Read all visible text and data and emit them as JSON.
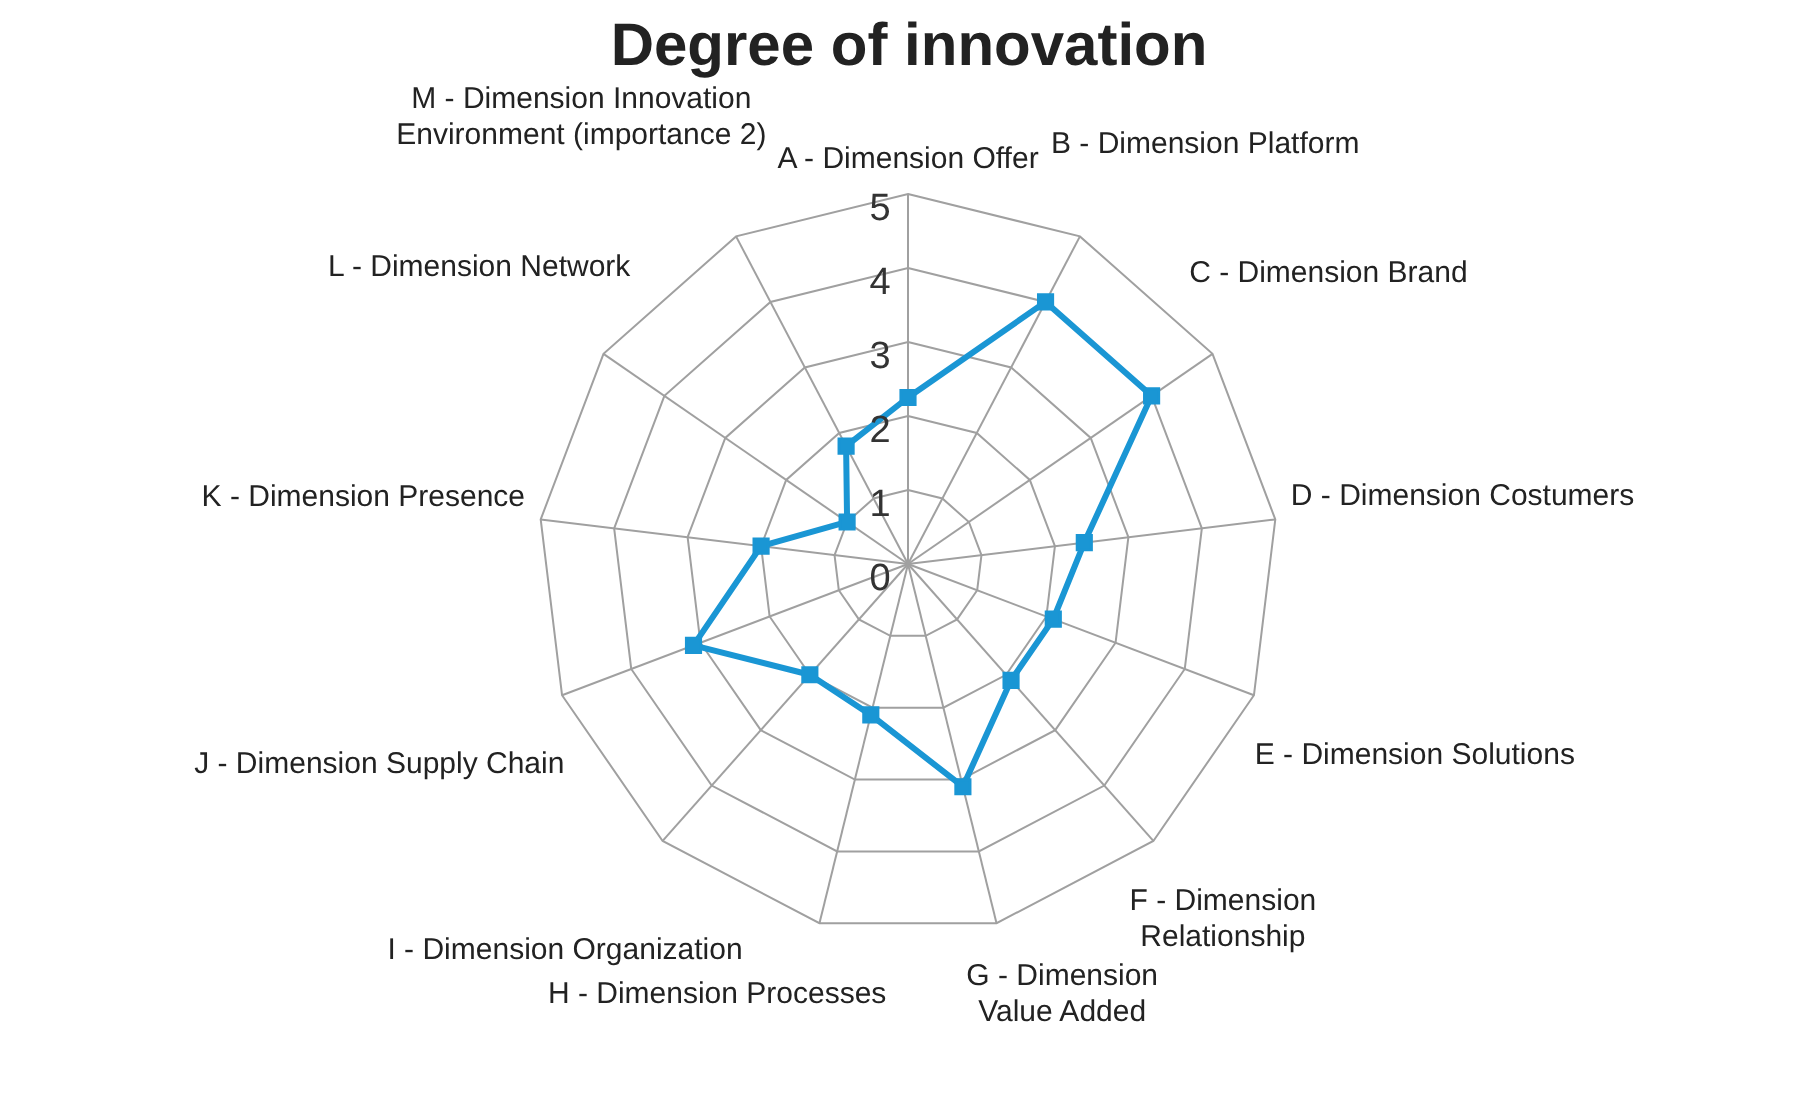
{
  "chart_data": {
    "type": "radar",
    "title": "Degree of innovation",
    "categories": [
      "A - Dimension Offer",
      "B - Dimension Platform",
      "C - Dimension Brand",
      "D - Dimension Costumers",
      "E - Dimension Solutions",
      "F - Dimension\nRelationship",
      "G - Dimension\nValue Added",
      "H - Dimension Processes",
      "I - Dimension Organization",
      "J - Dimension Supply Chain",
      "K - Dimension Presence",
      "L - Dimension Network",
      "M - Dimension Innovation\nEnvironment (importance 2)"
    ],
    "series": [
      {
        "color": "#1a96d4",
        "values": [
          2.25,
          4,
          4,
          2.4,
          2.1,
          2.1,
          3.1,
          2.1,
          2,
          3.1,
          2,
          1,
          1.8
        ]
      }
    ],
    "ylim": [
      0,
      5
    ],
    "yticks": [
      0,
      1,
      2,
      3,
      4,
      5
    ],
    "grid": true,
    "legend": false,
    "marker": "square",
    "line_style": "solid"
  }
}
